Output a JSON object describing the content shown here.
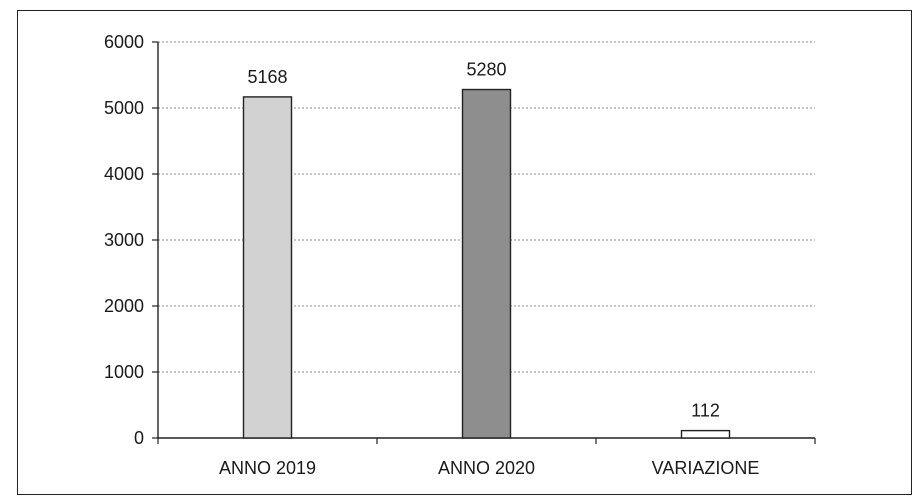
{
  "chart_data": {
    "type": "bar",
    "title": "",
    "xlabel": "",
    "ylabel": "",
    "categories": [
      "ANNO 2019",
      "ANNO 2020",
      "VARIAZIONE"
    ],
    "values": [
      5168,
      5280,
      112
    ],
    "data_labels": [
      "5168",
      "5280",
      "112"
    ],
    "ylim": [
      0,
      6000
    ],
    "yticks": [
      0,
      1000,
      2000,
      3000,
      4000,
      5000,
      6000
    ],
    "ytick_labels": [
      "0",
      "1000",
      "2000",
      "3000",
      "4000",
      "5000",
      "6000"
    ],
    "grid": true,
    "legend": "none",
    "bar_colors": [
      "#d2d2d2",
      "#8e8e8e",
      "#ffffff"
    ]
  }
}
